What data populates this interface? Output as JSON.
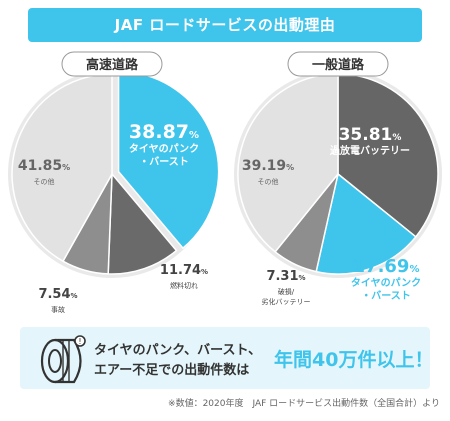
{
  "title": "JAF ロードサービスの出動理由",
  "colors": {
    "accent": "#3fc4ec",
    "dark": "#666666",
    "mid": "#8a8a8a",
    "light": "#e2e2e2",
    "ring": "#e9e9e9",
    "banner_bg": "#e4f6fb"
  },
  "chart_data": [
    {
      "type": "pie",
      "title": "高速道路",
      "slices": [
        {
          "label": "タイヤのパンク・バースト",
          "value": 38.87,
          "display": "38.87",
          "color": "#3fc4ec"
        },
        {
          "label": "燃料切れ",
          "value": 11.74,
          "display": "11.74",
          "color": "#6a6a6a"
        },
        {
          "label": "事故",
          "value": 7.54,
          "display": "7.54",
          "color": "#8e8e8e"
        },
        {
          "label": "その他",
          "value": 41.85,
          "display": "41.85",
          "color": "#e2e2e2"
        }
      ]
    },
    {
      "type": "pie",
      "title": "一般道路",
      "slices": [
        {
          "label": "過放電バッテリー",
          "value": 35.81,
          "display": "35.81",
          "color": "#666666"
        },
        {
          "label": "タイヤのパンク・バースト",
          "value": 17.69,
          "display": "17.69",
          "color": "#3fc4ec"
        },
        {
          "label": "破損/劣化バッテリー",
          "value": 7.31,
          "display": "7.31",
          "color": "#8e8e8e"
        },
        {
          "label": "その他",
          "value": 39.19,
          "display": "39.19",
          "color": "#e2e2e2"
        }
      ]
    }
  ],
  "percent_unit": "%",
  "banner": {
    "line1": "タイヤのパンク、バースト、",
    "line2": "エアー不足での出動件数は",
    "highlight": "年間40万件以上！",
    "icon": "tire-icon"
  },
  "source": "※数値：2020年度　JAF ロードサービス出動件数（全国合計）より"
}
